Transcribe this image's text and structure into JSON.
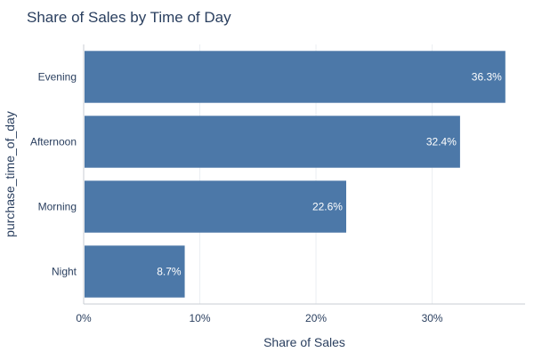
{
  "chart_data": {
    "type": "bar",
    "orientation": "horizontal",
    "title": "Share of Sales by Time of Day",
    "xlabel": "Share of Sales",
    "ylabel": "purchase_time_of_day",
    "categories": [
      "Evening",
      "Afternoon",
      "Morning",
      "Night"
    ],
    "values": [
      0.363,
      0.324,
      0.226,
      0.087
    ],
    "value_labels": [
      "36.3%",
      "32.4%",
      "22.6%",
      "8.7%"
    ],
    "xlim": [
      0,
      0.38
    ],
    "xticks": [
      0,
      0.1,
      0.2,
      0.3
    ],
    "xtick_labels": [
      "0%",
      "10%",
      "20%",
      "30%"
    ],
    "grid": true,
    "legend": "none"
  },
  "colors": {
    "bar": "#4c78a8",
    "title": "#2a3f5f",
    "axis_text": "#2a3f5f",
    "grid": "#ebeef2",
    "axis_line": "#c8cdd3",
    "value_label": "#ffffff"
  }
}
